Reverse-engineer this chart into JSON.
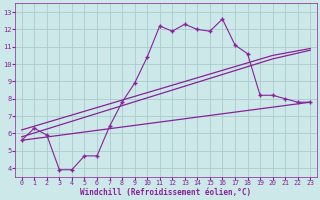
{
  "xlabel": "Windchill (Refroidissement éolien,°C)",
  "bg_color": "#cce8e8",
  "line_color": "#882299",
  "grid_color": "#aacccc",
  "xlim": [
    -0.5,
    23.5
  ],
  "ylim": [
    3.5,
    13.5
  ],
  "xticks": [
    0,
    1,
    2,
    3,
    4,
    5,
    6,
    7,
    8,
    9,
    10,
    11,
    12,
    13,
    14,
    15,
    16,
    17,
    18,
    19,
    20,
    21,
    22,
    23
  ],
  "yticks": [
    4,
    5,
    6,
    7,
    8,
    9,
    10,
    11,
    12,
    13
  ],
  "series1_x": [
    0,
    1,
    2,
    3,
    4,
    5,
    6,
    7,
    8,
    9,
    10,
    11,
    12,
    13,
    14,
    15,
    16,
    17,
    18,
    19,
    20,
    21,
    22,
    23
  ],
  "series1_y": [
    5.6,
    6.3,
    5.9,
    3.9,
    3.9,
    4.7,
    4.7,
    6.4,
    7.8,
    8.9,
    10.4,
    12.2,
    11.9,
    12.3,
    12.0,
    11.9,
    12.6,
    11.1,
    10.6,
    8.2,
    8.2,
    8.0,
    7.8,
    7.8
  ],
  "series2_x": [
    0,
    23
  ],
  "series2_y": [
    5.6,
    7.8
  ],
  "series3_x": [
    0,
    20,
    23
  ],
  "series3_y": [
    5.8,
    10.3,
    10.8
  ],
  "series4_x": [
    0,
    20,
    23
  ],
  "series4_y": [
    6.2,
    10.5,
    10.9
  ]
}
